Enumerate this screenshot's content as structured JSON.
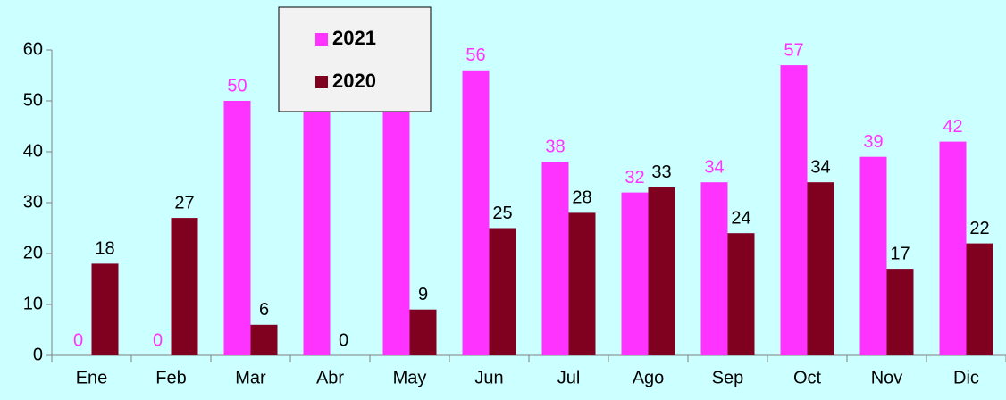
{
  "chart_data": {
    "type": "bar",
    "categories": [
      "Ene",
      "Feb",
      "Mar",
      "Abr",
      "May",
      "Jun",
      "Jul",
      "Ago",
      "Sep",
      "Oct",
      "Nov",
      "Dic"
    ],
    "series": [
      {
        "name": "2021",
        "color": "#ff33ff",
        "values": [
          0,
          0,
          50,
          55,
          52,
          56,
          38,
          32,
          34,
          57,
          39,
          42
        ]
      },
      {
        "name": "2020",
        "color": "#800020",
        "values": [
          18,
          27,
          6,
          0,
          9,
          25,
          28,
          33,
          24,
          34,
          17,
          22
        ]
      }
    ],
    "ylim": [
      0,
      60
    ],
    "yticks": [
      0,
      10,
      20,
      30,
      40,
      50,
      60
    ],
    "legend": "top-center"
  }
}
